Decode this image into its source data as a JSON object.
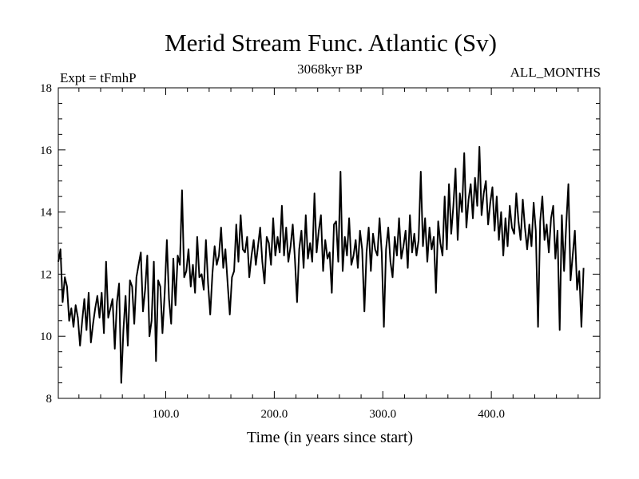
{
  "chart_data": {
    "type": "line",
    "title": "Merid Stream Func. Atlantic (Sv)",
    "subtitle_left": "Expt = tFmhP",
    "subtitle_center": "3068kyr BP",
    "subtitle_right": "ALL_MONTHS",
    "xlabel": "Time (in years since start)",
    "ylabel": "",
    "xlim": [
      1,
      500
    ],
    "ylim": [
      8,
      18
    ],
    "x_ticks": [
      100,
      200,
      300,
      400
    ],
    "x_tick_labels": [
      "100.0",
      "200.0",
      "300.0",
      "400.0"
    ],
    "y_ticks": [
      8,
      10,
      12,
      14,
      16,
      18
    ],
    "y_tick_labels": [
      "8",
      "10",
      "12",
      "14",
      "16",
      "18"
    ],
    "grid": false,
    "series": [
      {
        "name": "Merid Stream Func. Atlantic",
        "color": "#000000",
        "x_start": 1,
        "x_step": 2,
        "values": [
          12.4,
          12.8,
          11.1,
          11.9,
          11.6,
          10.5,
          10.9,
          10.3,
          11.0,
          10.6,
          9.7,
          10.5,
          11.2,
          10.2,
          11.4,
          9.8,
          10.4,
          10.9,
          11.3,
          10.6,
          11.4,
          10.1,
          12.4,
          10.6,
          10.9,
          11.2,
          9.6,
          11.1,
          11.7,
          8.5,
          10.2,
          11.3,
          9.7,
          11.8,
          11.6,
          10.4,
          11.9,
          12.3,
          12.7,
          10.8,
          11.5,
          12.6,
          10.0,
          10.5,
          12.4,
          9.2,
          11.8,
          11.6,
          10.1,
          11.4,
          13.1,
          11.2,
          10.4,
          12.5,
          11.0,
          12.6,
          12.3,
          14.7,
          11.9,
          12.1,
          12.8,
          11.6,
          12.3,
          11.4,
          13.2,
          11.9,
          12.0,
          11.5,
          13.1,
          11.7,
          10.7,
          12.0,
          12.9,
          12.3,
          12.6,
          13.5,
          12.2,
          12.8,
          11.7,
          10.7,
          11.9,
          12.1,
          13.6,
          12.4,
          13.9,
          12.8,
          12.7,
          13.2,
          11.9,
          12.6,
          13.1,
          12.3,
          12.9,
          13.5,
          12.4,
          11.7,
          13.2,
          13.0,
          12.3,
          13.8,
          12.6,
          13.2,
          12.7,
          14.2,
          12.6,
          13.5,
          12.4,
          12.9,
          13.6,
          12.5,
          11.1,
          12.8,
          13.4,
          12.2,
          13.9,
          12.5,
          13.0,
          12.4,
          14.6,
          12.7,
          13.4,
          13.9,
          12.1,
          13.1,
          12.5,
          12.7,
          11.4,
          13.6,
          13.7,
          12.4,
          15.3,
          12.1,
          13.2,
          12.6,
          13.8,
          12.3,
          12.6,
          13.1,
          12.2,
          13.4,
          12.8,
          10.8,
          12.7,
          13.5,
          12.1,
          13.3,
          12.8,
          12.6,
          13.8,
          12.7,
          10.3,
          12.8,
          13.5,
          12.4,
          11.9,
          13.2,
          12.6,
          13.8,
          12.5,
          12.9,
          13.4,
          12.2,
          13.9,
          12.7,
          13.3,
          12.6,
          13.1,
          15.3,
          12.9,
          13.8,
          12.4,
          13.5,
          12.8,
          13.2,
          11.4,
          13.7,
          13.0,
          12.6,
          14.5,
          12.8,
          14.9,
          13.3,
          14.2,
          15.4,
          13.1,
          14.6,
          14.0,
          15.9,
          13.5,
          14.4,
          14.9,
          13.8,
          15.1,
          14.2,
          16.1,
          13.9,
          14.6,
          15.0,
          13.6,
          14.3,
          14.8,
          13.4,
          14.5,
          13.1,
          14.0,
          12.6,
          13.8,
          12.9,
          14.2,
          13.5,
          13.3,
          14.6,
          13.7,
          13.1,
          14.4,
          13.5,
          12.8,
          13.6,
          12.9,
          14.3,
          13.4,
          10.3,
          13.7,
          14.5,
          13.1,
          13.6,
          12.7,
          13.8,
          14.2,
          12.5,
          13.4,
          10.2,
          13.9,
          12.1,
          13.6,
          14.9,
          11.8,
          12.6,
          13.4,
          11.5,
          12.1,
          10.3,
          12.2
        ]
      }
    ]
  }
}
